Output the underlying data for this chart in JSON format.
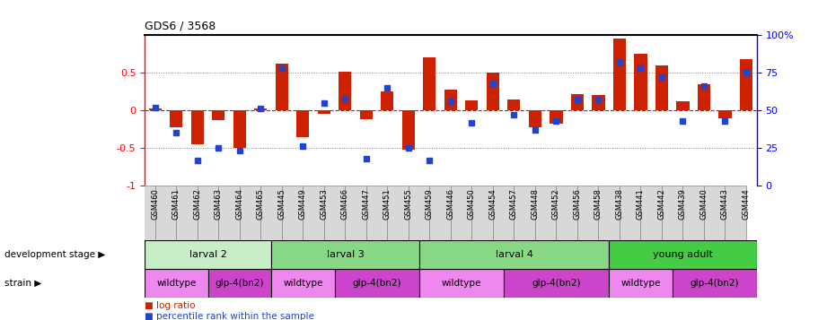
{
  "title": "GDS6 / 3568",
  "samples": [
    "GSM460",
    "GSM461",
    "GSM462",
    "GSM463",
    "GSM464",
    "GSM465",
    "GSM445",
    "GSM449",
    "GSM453",
    "GSM466",
    "GSM447",
    "GSM451",
    "GSM455",
    "GSM459",
    "GSM446",
    "GSM450",
    "GSM454",
    "GSM457",
    "GSM448",
    "GSM452",
    "GSM456",
    "GSM458",
    "GSM438",
    "GSM441",
    "GSM442",
    "GSM439",
    "GSM440",
    "GSM443",
    "GSM444"
  ],
  "log_ratio": [
    0.03,
    -0.22,
    -0.45,
    -0.13,
    -0.5,
    0.02,
    0.62,
    -0.35,
    -0.05,
    0.52,
    -0.12,
    0.25,
    -0.52,
    0.7,
    0.28,
    0.13,
    0.5,
    0.15,
    -0.22,
    -0.18,
    0.22,
    0.2,
    0.95,
    0.75,
    0.6,
    0.12,
    0.35,
    -0.1,
    0.68
  ],
  "percentile": [
    52,
    35,
    17,
    25,
    23,
    51,
    78,
    26,
    55,
    58,
    18,
    65,
    25,
    17,
    56,
    42,
    68,
    47,
    37,
    43,
    57,
    57,
    82,
    78,
    72,
    43,
    66,
    43,
    75
  ],
  "dev_stages": [
    {
      "label": "larval 2",
      "start": 0,
      "end": 6,
      "color": "#c8eec8"
    },
    {
      "label": "larval 3",
      "start": 6,
      "end": 13,
      "color": "#88d888"
    },
    {
      "label": "larval 4",
      "start": 13,
      "end": 22,
      "color": "#88d888"
    },
    {
      "label": "young adult",
      "start": 22,
      "end": 29,
      "color": "#44cc44"
    }
  ],
  "strains": [
    {
      "label": "wildtype",
      "start": 0,
      "end": 3,
      "color": "#ee88ee"
    },
    {
      "label": "glp-4(bn2)",
      "start": 3,
      "end": 6,
      "color": "#cc44cc"
    },
    {
      "label": "wildtype",
      "start": 6,
      "end": 9,
      "color": "#ee88ee"
    },
    {
      "label": "glp-4(bn2)",
      "start": 9,
      "end": 13,
      "color": "#cc44cc"
    },
    {
      "label": "wildtype",
      "start": 13,
      "end": 17,
      "color": "#ee88ee"
    },
    {
      "label": "glp-4(bn2)",
      "start": 17,
      "end": 22,
      "color": "#cc44cc"
    },
    {
      "label": "wildtype",
      "start": 22,
      "end": 25,
      "color": "#ee88ee"
    },
    {
      "label": "glp-4(bn2)",
      "start": 25,
      "end": 29,
      "color": "#cc44cc"
    }
  ],
  "bar_color": "#cc2200",
  "dot_color": "#2244cc",
  "ylim": [
    -1.0,
    1.0
  ],
  "y2lim": [
    0,
    100
  ],
  "yticks": [
    -1.0,
    -0.5,
    0.0,
    0.5
  ],
  "ytick_labels": [
    "-1",
    "-0.5",
    "0",
    "0.5"
  ],
  "y2ticks": [
    0,
    25,
    50,
    75,
    100
  ],
  "y2ticklabels": [
    "0",
    "25",
    "50",
    "75",
    "100%"
  ]
}
